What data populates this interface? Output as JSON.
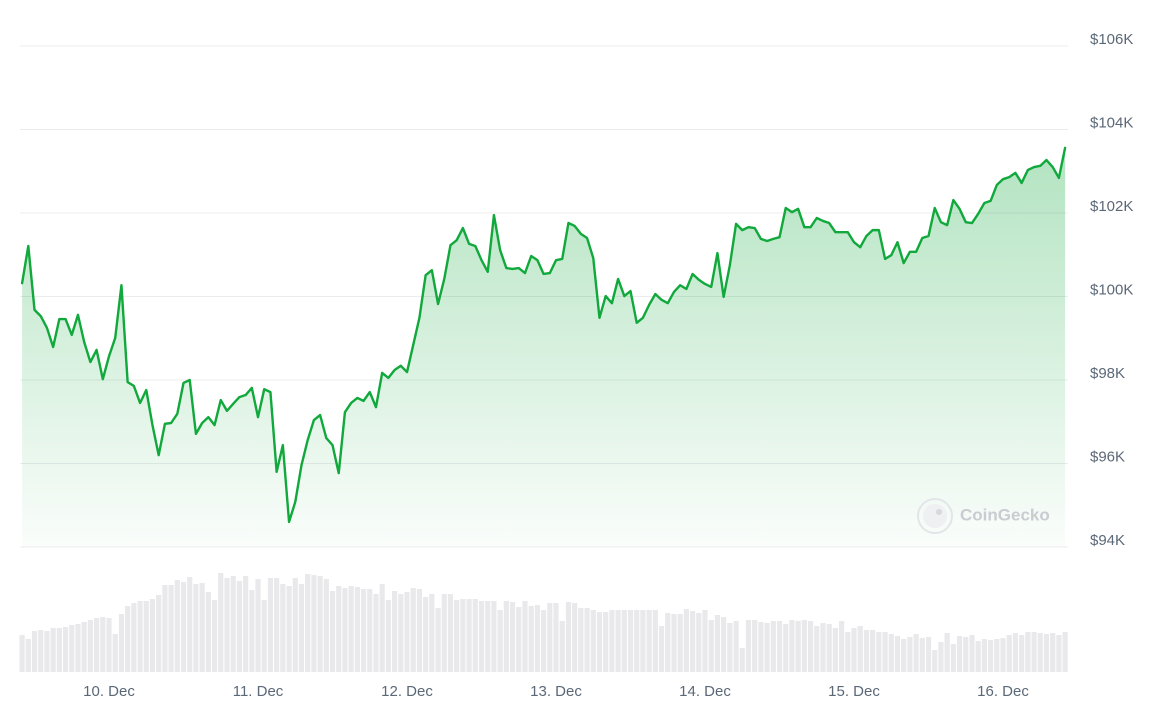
{
  "chart_data": {
    "type": "line",
    "categories": [
      null,
      null,
      null,
      null,
      null,
      null,
      null,
      null,
      null,
      null,
      null,
      null,
      null,
      null,
      "10. Dec",
      null,
      null,
      null,
      null,
      null,
      null,
      null,
      null,
      null,
      null,
      null,
      null,
      null,
      null,
      null,
      null,
      null,
      null,
      null,
      null,
      null,
      null,
      null,
      "11. Dec",
      null,
      null,
      null,
      null,
      null,
      null,
      null,
      null,
      null,
      null,
      null,
      null,
      null,
      null,
      null,
      null,
      null,
      null,
      null,
      null,
      null,
      null,
      null,
      "12. Dec",
      null,
      null,
      null,
      null,
      null,
      null,
      null,
      null,
      null,
      null,
      null,
      null,
      null,
      null,
      null,
      null,
      null,
      null,
      null,
      null,
      null,
      null,
      null,
      "13. Dec",
      null,
      null,
      null,
      null,
      null,
      null,
      null,
      null,
      null,
      null,
      null,
      null,
      null,
      null,
      null,
      null,
      null,
      null,
      null,
      null,
      null,
      null,
      null,
      "14. Dec",
      null,
      null,
      null,
      null,
      null,
      null,
      null,
      null,
      null,
      null,
      null,
      null,
      null,
      null,
      null,
      null,
      null,
      null,
      null,
      null,
      null,
      null,
      null,
      "15. Dec",
      null,
      null,
      null,
      null,
      null,
      null,
      null,
      null,
      null,
      null,
      null,
      null,
      null,
      null,
      null,
      null,
      null,
      null,
      null,
      null,
      null,
      null,
      null,
      "16. Dec",
      null,
      null,
      null,
      null,
      null,
      null,
      null,
      null,
      null,
      null
    ],
    "series": [
      {
        "color": "#11a83c",
        "values": [
          100320,
          101210,
          99680,
          99530,
          99250,
          98790,
          99460,
          99460,
          99080,
          99560,
          98910,
          98430,
          98720,
          98020,
          98570,
          99010,
          100270,
          97950,
          97860,
          97450,
          97760,
          96920,
          96200,
          96950,
          96970,
          97190,
          97930,
          98000,
          96710,
          96970,
          97110,
          96920,
          97520,
          97260,
          97430,
          97590,
          97640,
          97810,
          97110,
          97780,
          97710,
          95800,
          96440,
          94600,
          95080,
          95960,
          96560,
          97040,
          97160,
          96610,
          96440,
          95770,
          97230,
          97450,
          97570,
          97500,
          97710,
          97350,
          98170,
          98050,
          98240,
          98340,
          98190,
          98840,
          99490,
          100510,
          100630,
          99820,
          100420,
          101230,
          101350,
          101640,
          101260,
          101210,
          100870,
          100590,
          101950,
          101110,
          100680,
          100660,
          100680,
          100560,
          100970,
          100870,
          100540,
          100560,
          100870,
          100900,
          101760,
          101690,
          101500,
          101400,
          100920,
          99490,
          100010,
          99840,
          100420,
          100010,
          100130,
          99370,
          99490,
          99800,
          100060,
          99920,
          99840,
          100110,
          100270,
          100180,
          100540,
          100400,
          100300,
          100230,
          101040,
          99990,
          100750,
          101740,
          101590,
          101660,
          101640,
          101380,
          101330,
          101380,
          101420,
          102120,
          102020,
          102100,
          101660,
          101660,
          101880,
          101810,
          101760,
          101540,
          101540,
          101540,
          101300,
          101180,
          101450,
          101590,
          101590,
          100900,
          100990,
          101300,
          100800,
          101070,
          101070,
          101400,
          101450,
          102120,
          101780,
          101710,
          102310,
          102100,
          101780,
          101760,
          101980,
          102240,
          102290,
          102670,
          102810,
          102860,
          102960,
          102720,
          103030,
          103100,
          103130,
          103270,
          103100,
          102840,
          103560
        ]
      }
    ],
    "volume": {
      "color": "#e9e9eb",
      "values": [
        37,
        33,
        41,
        42,
        41,
        44,
        44,
        45,
        47,
        48,
        50,
        52,
        54,
        55,
        54,
        38,
        58,
        66,
        69,
        71,
        71,
        73,
        77,
        87,
        87,
        92,
        90,
        95,
        88,
        89,
        80,
        72,
        99,
        94,
        96,
        91,
        96,
        82,
        93,
        72,
        94,
        94,
        88,
        86,
        94,
        88,
        98,
        97,
        96,
        93,
        81,
        86,
        84,
        86,
        85,
        83,
        83,
        78,
        88,
        72,
        81,
        78,
        80,
        84,
        83,
        75,
        78,
        64,
        78,
        78,
        72,
        73,
        73,
        73,
        71,
        71,
        71,
        62,
        71,
        70,
        65,
        71,
        66,
        67,
        62,
        69,
        69,
        51,
        70,
        69,
        64,
        64,
        62,
        60,
        60,
        62,
        62,
        62,
        62,
        62,
        62,
        62,
        62,
        46,
        59,
        58,
        58,
        63,
        61,
        59,
        62,
        52,
        57,
        55,
        49,
        51,
        24,
        52,
        52,
        50,
        49,
        51,
        51,
        48,
        52,
        51,
        52,
        51,
        46,
        49,
        48,
        44,
        51,
        40,
        44,
        46,
        42,
        42,
        40,
        40,
        38,
        36,
        33,
        35,
        38,
        34,
        35,
        22,
        30,
        39,
        28,
        36,
        35,
        37,
        31,
        33,
        32,
        33,
        34,
        37,
        39,
        37,
        40,
        40,
        39,
        38,
        39,
        37,
        40
      ]
    },
    "ylim": [
      94000,
      106000
    ],
    "yticks": [
      {
        "value": 94000,
        "label": "$94K"
      },
      {
        "value": 96000,
        "label": "$96K"
      },
      {
        "value": 98000,
        "label": "$98K"
      },
      {
        "value": 100000,
        "label": "$100K"
      },
      {
        "value": 102000,
        "label": "$102K"
      },
      {
        "value": 104000,
        "label": "$104K"
      },
      {
        "value": 106000,
        "label": "$106K"
      }
    ],
    "grid": true,
    "area_fill": true,
    "watermark": "CoinGecko"
  }
}
